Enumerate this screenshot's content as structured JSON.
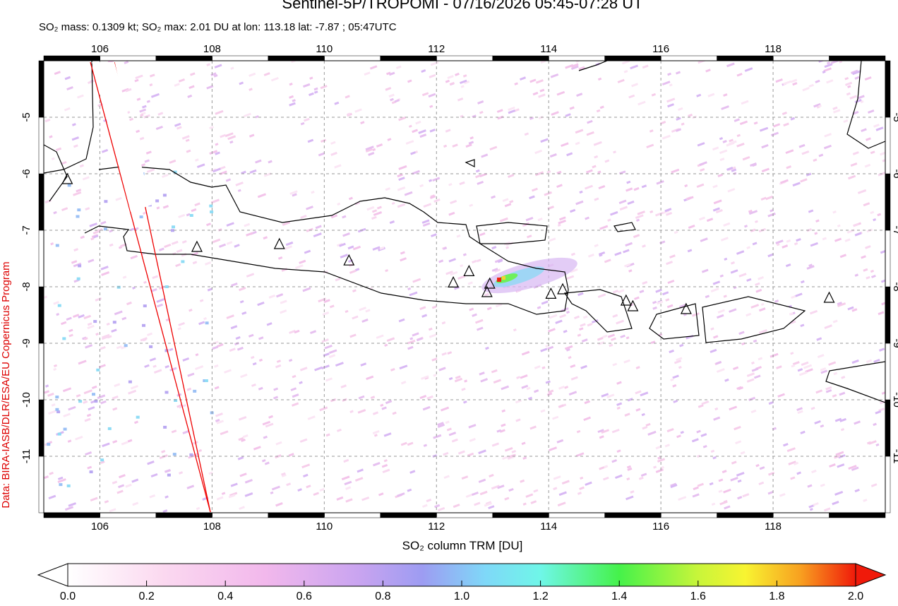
{
  "chart_data": {
    "type": "map",
    "title": "Sentinel-5P/TROPOMI - 07/16/2026 05:45-07:28 UT",
    "subtitle": "SO₂ mass: 0.1309 kt; SO₂ max: 2.01 DU at lon: 113.18 lat: -7.87 ; 05:47UTC",
    "side_label": "Data: BIRA-IASB/DLR/ESA/EU Copernicus Program",
    "xlim": [
      105,
      120
    ],
    "ylim": [
      -12,
      -4
    ],
    "xticks": [
      106,
      108,
      110,
      112,
      114,
      116,
      118
    ],
    "yticks": [
      -5,
      -6,
      -7,
      -8,
      -9,
      -10,
      -11
    ],
    "grid": true,
    "volcanoes": {
      "lon": [
        105.42,
        107.73,
        109.2,
        110.44,
        112.3,
        112.58,
        112.95,
        112.9,
        114.04,
        114.25,
        115.38,
        115.5,
        116.45,
        119.0
      ],
      "lat": [
        -6.1,
        -7.3,
        -7.25,
        -7.54,
        -7.93,
        -7.73,
        -7.95,
        -8.1,
        -8.13,
        -8.05,
        -8.25,
        -8.35,
        -8.4,
        -8.2
      ]
    },
    "colorbar": {
      "label": "SO₂ column TRM [DU]",
      "lim": [
        0,
        2
      ],
      "ticks": [
        {
          "value": 0,
          "label": "0.0"
        },
        {
          "value": 0.2,
          "label": "0.2"
        },
        {
          "value": 0.4,
          "label": "0.4"
        },
        {
          "value": 0.6,
          "label": "0.6"
        },
        {
          "value": 0.8,
          "label": "0.8"
        },
        {
          "value": 1,
          "label": "1.0"
        },
        {
          "value": 1.2,
          "label": "1.2"
        },
        {
          "value": 1.4,
          "label": "1.4"
        },
        {
          "value": 1.6,
          "label": "1.6"
        },
        {
          "value": 1.8,
          "label": "1.8"
        },
        {
          "value": 2,
          "label": "2.0"
        }
      ]
    }
  }
}
